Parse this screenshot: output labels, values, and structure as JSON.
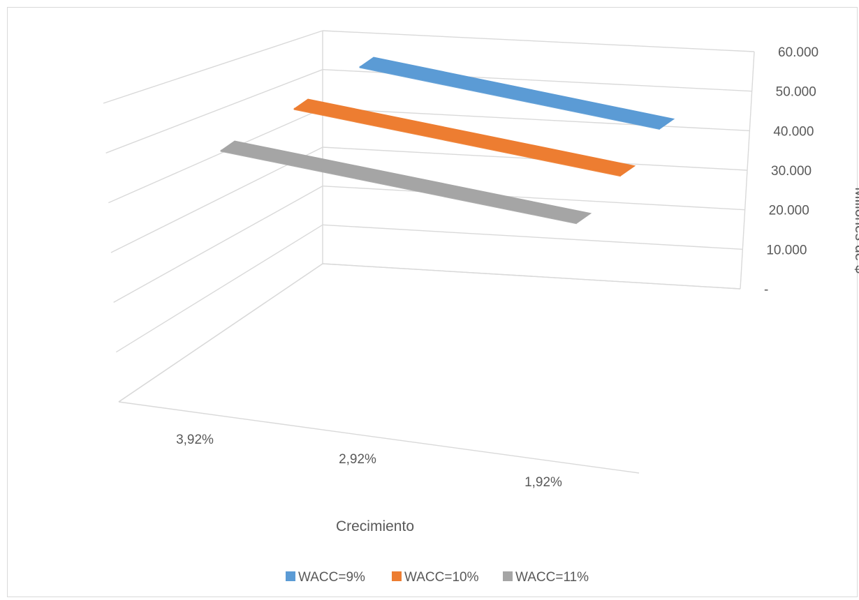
{
  "chart_data": {
    "type": "line",
    "subtype": "3d-ribbon",
    "title": "",
    "xlabel": "Crecimiento",
    "ylabel": "Millones de $",
    "categories": [
      "3,92%",
      "2,92%",
      "1,92%"
    ],
    "y_ticks": [
      "-",
      "10.000",
      "20.000",
      "30.000",
      "40.000",
      "50.000",
      "60.000"
    ],
    "ylim": [
      0,
      60000
    ],
    "grid": true,
    "legend_position": "bottom",
    "series": [
      {
        "name": "WACC=9%",
        "color": "#5b9bd5",
        "values": [
          53000,
          52000,
          51000
        ]
      },
      {
        "name": "WACC=10%",
        "color": "#ed7d31",
        "values": [
          44000,
          43000,
          42000
        ]
      },
      {
        "name": "WACC=11%",
        "color": "#a5a5a5",
        "values": [
          35000,
          34000,
          33000
        ]
      }
    ]
  }
}
